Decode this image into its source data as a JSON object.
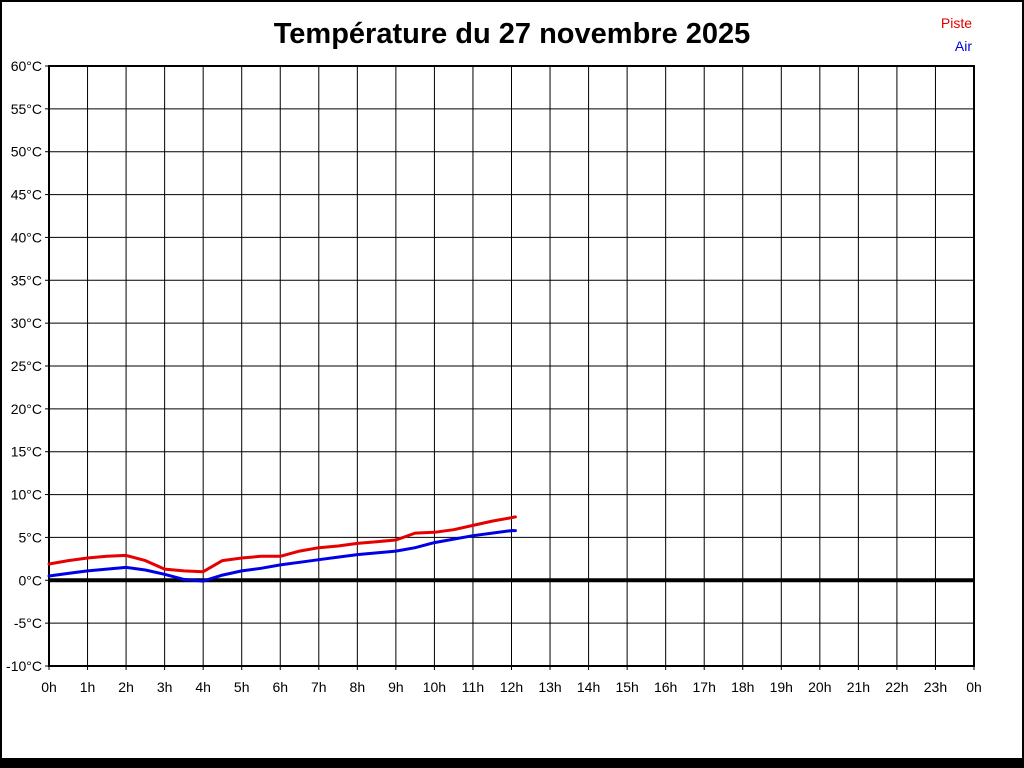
{
  "chart_data": {
    "type": "line",
    "title": "Température du 27 novembre 2025",
    "xlabel": "",
    "ylabel": "",
    "xlim": [
      0,
      24
    ],
    "ylim": [
      -10,
      60
    ],
    "y_tick_step": 5,
    "x_tick_step": 1,
    "grid": true,
    "legend_position": "top-right-outside",
    "zero_line": {
      "value": 0,
      "color": "#000000",
      "width": 4
    },
    "x_tick_labels": [
      "0h",
      "1h",
      "2h",
      "3h",
      "4h",
      "5h",
      "6h",
      "7h",
      "8h",
      "9h",
      "10h",
      "11h",
      "12h",
      "13h",
      "14h",
      "15h",
      "16h",
      "17h",
      "18h",
      "19h",
      "20h",
      "21h",
      "22h",
      "23h",
      "0h"
    ],
    "y_tick_labels": [
      "60°C",
      "55°C",
      "50°C",
      "45°C",
      "40°C",
      "35°C",
      "30°C",
      "25°C",
      "20°C",
      "15°C",
      "10°C",
      "5°C",
      "0°C",
      "-5°C",
      "-10°C"
    ],
    "x_hours": [
      0,
      0.5,
      1,
      1.5,
      2,
      2.5,
      3,
      3.5,
      4,
      4.5,
      5,
      5.5,
      6,
      6.5,
      7,
      7.5,
      8,
      8.5,
      9,
      9.5,
      10,
      10.5,
      11,
      11.5,
      12,
      12.1
    ],
    "series": [
      {
        "name": "Piste",
        "color": "#e60000",
        "values": [
          1.9,
          2.3,
          2.6,
          2.8,
          2.9,
          2.3,
          1.3,
          1.1,
          1.0,
          2.3,
          2.6,
          2.8,
          2.8,
          3.4,
          3.8,
          4.0,
          4.3,
          4.5,
          4.7,
          5.5,
          5.6,
          5.9,
          6.4,
          6.9,
          7.3,
          7.4
        ]
      },
      {
        "name": "Air",
        "color": "#0000e6",
        "values": [
          0.5,
          0.8,
          1.1,
          1.3,
          1.5,
          1.2,
          0.7,
          0.1,
          -0.1,
          0.6,
          1.1,
          1.4,
          1.8,
          2.1,
          2.4,
          2.7,
          3.0,
          3.2,
          3.4,
          3.8,
          4.4,
          4.8,
          5.2,
          5.5,
          5.8,
          5.8
        ]
      }
    ]
  }
}
